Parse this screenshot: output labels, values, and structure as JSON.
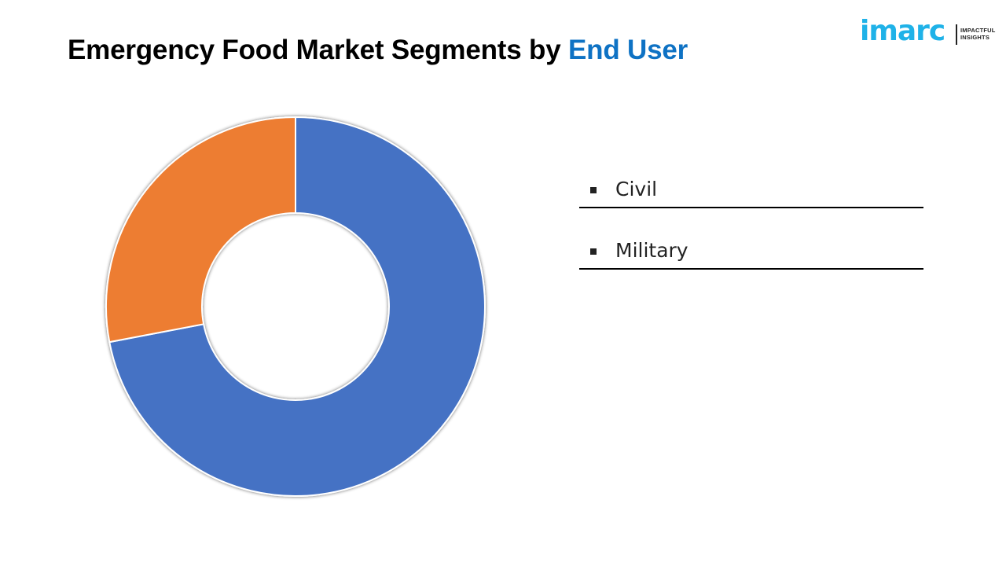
{
  "header": {
    "title_prefix": "Emergency Food Market Segments by ",
    "title_highlight": "End User"
  },
  "logo": {
    "wordmark": "imarc",
    "tagline_line1": "IMPACTFUL",
    "tagline_line2": "INSIGHTS"
  },
  "colors": {
    "civil": "#4472c4",
    "military": "#ed7d31",
    "title_highlight": "#0e72c4",
    "logo": "#1fb2e8"
  },
  "chart_data": {
    "type": "pie",
    "donut": true,
    "title": "Emergency Food Market Segments by End User",
    "categories": [
      "Civil",
      "Military"
    ],
    "values": [
      72,
      28
    ],
    "legend_position": "right"
  }
}
